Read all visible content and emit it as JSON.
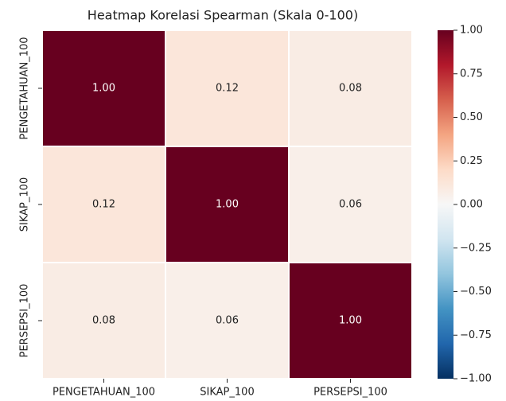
{
  "chart_data": {
    "type": "heatmap",
    "title": "Heatmap Korelasi Spearman (Skala 0-100)",
    "x_categories": [
      "PENGETAHUAN_100",
      "SIKAP_100",
      "PERSEPSI_100"
    ],
    "y_categories": [
      "PENGETAHUAN_100",
      "SIKAP_100",
      "PERSEPSI_100"
    ],
    "values": [
      [
        1.0,
        0.12,
        0.08
      ],
      [
        0.12,
        1.0,
        0.06
      ],
      [
        0.08,
        0.06,
        1.0
      ]
    ],
    "value_labels": [
      [
        "1.00",
        "0.12",
        "0.08"
      ],
      [
        "0.12",
        "1.00",
        "0.06"
      ],
      [
        "0.08",
        "0.06",
        "1.00"
      ]
    ],
    "colormap": [
      "#053061",
      "#2166ac",
      "#4393c3",
      "#92c5de",
      "#d1e5f0",
      "#f7f7f7",
      "#fddbc7",
      "#f4a582",
      "#d6604d",
      "#b2182b",
      "#67001f"
    ],
    "clim": [
      -1,
      1
    ],
    "cticks": [
      {
        "value": 1,
        "label": "1.00"
      },
      {
        "value": 0.75,
        "label": "0.75"
      },
      {
        "value": 0.5,
        "label": "0.50"
      },
      {
        "value": 0.25,
        "label": "0.25"
      },
      {
        "value": 0,
        "label": "0.00"
      },
      {
        "value": -0.25,
        "label": "−0.25"
      },
      {
        "value": -0.5,
        "label": "−0.50"
      },
      {
        "value": -0.75,
        "label": "−0.75"
      },
      {
        "value": -1,
        "label": "−1.00"
      }
    ]
  }
}
